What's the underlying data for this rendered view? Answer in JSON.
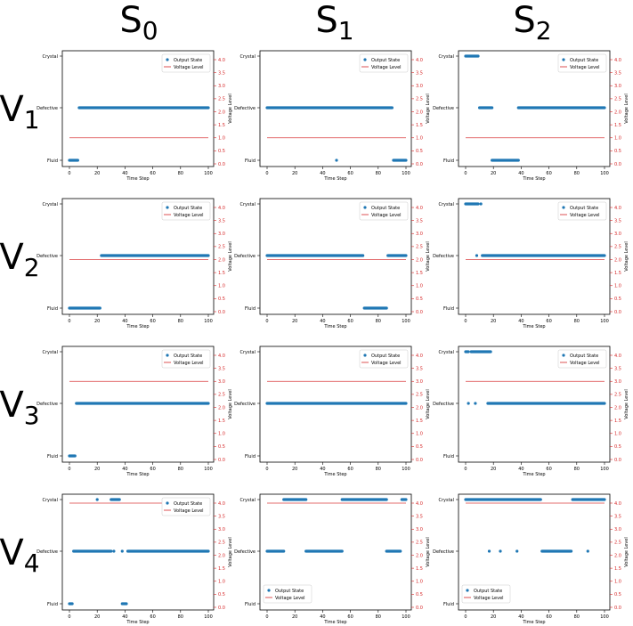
{
  "figure": {
    "column_labels": [
      {
        "base": "S",
        "sub": "0"
      },
      {
        "base": "S",
        "sub": "1"
      },
      {
        "base": "S",
        "sub": "2"
      }
    ],
    "row_labels": [
      {
        "base": "V",
        "sub": "1"
      },
      {
        "base": "V",
        "sub": "2"
      },
      {
        "base": "V",
        "sub": "3"
      },
      {
        "base": "V",
        "sub": "4"
      }
    ]
  },
  "colors": {
    "output_state": "#1f77b4",
    "voltage_level": "#d62728",
    "right_axis": "#d62728"
  },
  "chart_data": [
    {
      "type": "scatter",
      "row": 0,
      "col": 0,
      "xlabel": "Time Step",
      "ylabel_right": "Voltage Level",
      "x_ticks": [
        "0",
        "20",
        "40",
        "60",
        "80",
        "100"
      ],
      "y_left_ticks": [
        "Fluid",
        "Defective",
        "Crystal"
      ],
      "y_right_ticks": [
        "0.0",
        "0.5",
        "1.0",
        "1.5",
        "2.0",
        "2.5",
        "3.0",
        "3.5",
        "4.0"
      ],
      "xlim": [
        0,
        100
      ],
      "ylim_right": [
        0,
        4
      ],
      "legend": [
        "Output State",
        "Voltage Level"
      ],
      "legend_position": "top-right",
      "voltage": 1,
      "state_segments": [
        {
          "state": "Fluid",
          "start": 0,
          "end": 6
        },
        {
          "state": "Defective",
          "start": 7,
          "end": 100
        }
      ],
      "state_points": []
    },
    {
      "type": "scatter",
      "row": 0,
      "col": 1,
      "xlabel": "Time Step",
      "ylabel_right": "Voltage Level",
      "x_ticks": [
        "0",
        "20",
        "40",
        "60",
        "80",
        "100"
      ],
      "y_left_ticks": [
        "Fluid",
        "Defective",
        "Crystal"
      ],
      "y_right_ticks": [
        "0.0",
        "0.5",
        "1.0",
        "1.5",
        "2.0",
        "2.5",
        "3.0",
        "3.5",
        "4.0"
      ],
      "xlim": [
        0,
        100
      ],
      "ylim_right": [
        0,
        4
      ],
      "legend": [
        "Output State",
        "Voltage Level"
      ],
      "legend_position": "top-right",
      "voltage": 1,
      "state_segments": [
        {
          "state": "Defective",
          "start": 0,
          "end": 90
        },
        {
          "state": "Fluid",
          "start": 91,
          "end": 100
        }
      ],
      "state_points": [
        {
          "state": "Fluid",
          "t": 50
        }
      ]
    },
    {
      "type": "scatter",
      "row": 0,
      "col": 2,
      "xlabel": "Time Step",
      "ylabel_right": "Voltage Level",
      "x_ticks": [
        "0",
        "20",
        "40",
        "60",
        "80",
        "100"
      ],
      "y_left_ticks": [
        "Fluid",
        "Defective",
        "Crystal"
      ],
      "y_right_ticks": [
        "0.0",
        "0.5",
        "1.0",
        "1.5",
        "2.0",
        "2.5",
        "3.0",
        "3.5",
        "4.0"
      ],
      "xlim": [
        0,
        100
      ],
      "ylim_right": [
        0,
        4
      ],
      "legend": [
        "Output State",
        "Voltage Level"
      ],
      "legend_position": "top-right",
      "voltage": 1,
      "state_segments": [
        {
          "state": "Crystal",
          "start": 0,
          "end": 9
        },
        {
          "state": "Defective",
          "start": 10,
          "end": 19
        },
        {
          "state": "Fluid",
          "start": 19,
          "end": 38
        },
        {
          "state": "Defective",
          "start": 38,
          "end": 100
        }
      ],
      "state_points": []
    },
    {
      "type": "scatter",
      "row": 1,
      "col": 0,
      "xlabel": "Time Step",
      "ylabel_right": "Voltage Level",
      "x_ticks": [
        "0",
        "20",
        "40",
        "60",
        "80",
        "100"
      ],
      "y_left_ticks": [
        "Fluid",
        "Defective",
        "Crystal"
      ],
      "y_right_ticks": [
        "0.0",
        "0.5",
        "1.0",
        "1.5",
        "2.0",
        "2.5",
        "3.0",
        "3.5",
        "4.0"
      ],
      "xlim": [
        0,
        100
      ],
      "ylim_right": [
        0,
        4
      ],
      "legend": [
        "Output State",
        "Voltage Level"
      ],
      "legend_position": "top-right",
      "voltage": 2,
      "state_segments": [
        {
          "state": "Fluid",
          "start": 0,
          "end": 22
        },
        {
          "state": "Defective",
          "start": 23,
          "end": 100
        }
      ],
      "state_points": []
    },
    {
      "type": "scatter",
      "row": 1,
      "col": 1,
      "xlabel": "Time Step",
      "ylabel_right": "Voltage Level",
      "x_ticks": [
        "0",
        "20",
        "40",
        "60",
        "80",
        "100"
      ],
      "y_left_ticks": [
        "Fluid",
        "Defective",
        "Crystal"
      ],
      "y_right_ticks": [
        "0.0",
        "0.5",
        "1.0",
        "1.5",
        "2.0",
        "2.5",
        "3.0",
        "3.5",
        "4.0"
      ],
      "xlim": [
        0,
        100
      ],
      "ylim_right": [
        0,
        4
      ],
      "legend": [
        "Output State",
        "Voltage Level"
      ],
      "legend_position": "top-right",
      "voltage": 2,
      "state_segments": [
        {
          "state": "Defective",
          "start": 0,
          "end": 69
        },
        {
          "state": "Fluid",
          "start": 70,
          "end": 86
        },
        {
          "state": "Defective",
          "start": 87,
          "end": 100
        }
      ],
      "state_points": []
    },
    {
      "type": "scatter",
      "row": 1,
      "col": 2,
      "xlabel": "Time Step",
      "ylabel_right": "Voltage Level",
      "x_ticks": [
        "0",
        "20",
        "40",
        "60",
        "80",
        "100"
      ],
      "y_left_ticks": [
        "Fluid",
        "Defective",
        "Crystal"
      ],
      "y_right_ticks": [
        "0.0",
        "0.5",
        "1.0",
        "1.5",
        "2.0",
        "2.5",
        "3.0",
        "3.5",
        "4.0"
      ],
      "xlim": [
        0,
        100
      ],
      "ylim_right": [
        0,
        4
      ],
      "legend": [
        "Output State",
        "Voltage Level"
      ],
      "legend_position": "top-right",
      "voltage": 2,
      "state_segments": [
        {
          "state": "Crystal",
          "start": 0,
          "end": 9
        },
        {
          "state": "Defective",
          "start": 12,
          "end": 100
        }
      ],
      "state_points": [
        {
          "state": "Crystal",
          "t": 11
        },
        {
          "state": "Defective",
          "t": 8
        }
      ]
    },
    {
      "type": "scatter",
      "row": 2,
      "col": 0,
      "xlabel": "Time Step",
      "ylabel_right": "Voltage Level",
      "x_ticks": [
        "0",
        "20",
        "40",
        "60",
        "80",
        "100"
      ],
      "y_left_ticks": [
        "Fluid",
        "Defective",
        "Crystal"
      ],
      "y_right_ticks": [
        "0.0",
        "0.5",
        "1.0",
        "1.5",
        "2.0",
        "2.5",
        "3.0",
        "3.5",
        "4.0"
      ],
      "xlim": [
        0,
        100
      ],
      "ylim_right": [
        0,
        4
      ],
      "legend": [
        "Output State",
        "Voltage Level"
      ],
      "legend_position": "top-right",
      "voltage": 3,
      "state_segments": [
        {
          "state": "Fluid",
          "start": 0,
          "end": 4
        },
        {
          "state": "Defective",
          "start": 5,
          "end": 100
        }
      ],
      "state_points": []
    },
    {
      "type": "scatter",
      "row": 2,
      "col": 1,
      "xlabel": "Time Step",
      "ylabel_right": "Voltage Level",
      "x_ticks": [
        "0",
        "20",
        "40",
        "60",
        "80",
        "100"
      ],
      "y_left_ticks": [
        "Fluid",
        "Defective",
        "Crystal"
      ],
      "y_right_ticks": [
        "0.0",
        "0.5",
        "1.0",
        "1.5",
        "2.0",
        "2.5",
        "3.0",
        "3.5",
        "4.0"
      ],
      "xlim": [
        0,
        100
      ],
      "ylim_right": [
        0,
        4
      ],
      "legend": [
        "Output State",
        "Voltage Level"
      ],
      "legend_position": "top-right",
      "voltage": 3,
      "state_segments": [
        {
          "state": "Defective",
          "start": 0,
          "end": 100
        }
      ],
      "state_points": []
    },
    {
      "type": "scatter",
      "row": 2,
      "col": 2,
      "xlabel": "Time Step",
      "ylabel_right": "Voltage Level",
      "x_ticks": [
        "0",
        "20",
        "40",
        "60",
        "80",
        "100"
      ],
      "y_left_ticks": [
        "Fluid",
        "Defective",
        "Crystal"
      ],
      "y_right_ticks": [
        "0.0",
        "0.5",
        "1.0",
        "1.5",
        "2.0",
        "2.5",
        "3.0",
        "3.5",
        "4.0"
      ],
      "xlim": [
        0,
        100
      ],
      "ylim_right": [
        0,
        4
      ],
      "legend": [
        "Output State",
        "Voltage Level"
      ],
      "legend_position": "top-right",
      "voltage": 3,
      "state_segments": [
        {
          "state": "Crystal",
          "start": 0,
          "end": 2
        },
        {
          "state": "Crystal",
          "start": 4,
          "end": 18
        },
        {
          "state": "Defective",
          "start": 16,
          "end": 100
        }
      ],
      "state_points": [
        {
          "state": "Defective",
          "t": 2
        },
        {
          "state": "Defective",
          "t": 7
        }
      ]
    },
    {
      "type": "scatter",
      "row": 3,
      "col": 0,
      "xlabel": "Time Step",
      "ylabel_right": "Voltage Level",
      "x_ticks": [
        "0",
        "20",
        "40",
        "60",
        "80",
        "100"
      ],
      "y_left_ticks": [
        "Fluid",
        "Defective",
        "Crystal"
      ],
      "y_right_ticks": [
        "0.0",
        "0.5",
        "1.0",
        "1.5",
        "2.0",
        "2.5",
        "3.0",
        "3.5",
        "4.0"
      ],
      "xlim": [
        0,
        100
      ],
      "ylim_right": [
        0,
        4
      ],
      "legend": [
        "Output State",
        "Voltage Level"
      ],
      "legend_position": "top-right",
      "voltage": 4,
      "state_segments": [
        {
          "state": "Fluid",
          "start": 0,
          "end": 2
        },
        {
          "state": "Defective",
          "start": 3,
          "end": 30
        },
        {
          "state": "Crystal",
          "start": 30,
          "end": 36
        },
        {
          "state": "Defective",
          "start": 42,
          "end": 100
        },
        {
          "state": "Fluid",
          "start": 38,
          "end": 41
        }
      ],
      "state_points": [
        {
          "state": "Crystal",
          "t": 20
        },
        {
          "state": "Defective",
          "t": 32
        },
        {
          "state": "Defective",
          "t": 38
        }
      ]
    },
    {
      "type": "scatter",
      "row": 3,
      "col": 1,
      "xlabel": "Time Step",
      "ylabel_right": "Voltage Level",
      "x_ticks": [
        "0",
        "20",
        "40",
        "60",
        "80",
        "100"
      ],
      "y_left_ticks": [
        "Fluid",
        "Defective",
        "Crystal"
      ],
      "y_right_ticks": [
        "0.0",
        "0.5",
        "1.0",
        "1.5",
        "2.0",
        "2.5",
        "3.0",
        "3.5",
        "4.0"
      ],
      "xlim": [
        0,
        100
      ],
      "ylim_right": [
        0,
        4
      ],
      "legend": [
        "Output State",
        "Voltage Level"
      ],
      "legend_position": "bottom-left",
      "voltage": 4,
      "state_segments": [
        {
          "state": "Defective",
          "start": 0,
          "end": 12
        },
        {
          "state": "Crystal",
          "start": 12,
          "end": 28
        },
        {
          "state": "Defective",
          "start": 28,
          "end": 54
        },
        {
          "state": "Crystal",
          "start": 54,
          "end": 86
        },
        {
          "state": "Defective",
          "start": 86,
          "end": 96
        },
        {
          "state": "Crystal",
          "start": 97,
          "end": 100
        }
      ],
      "state_points": []
    },
    {
      "type": "scatter",
      "row": 3,
      "col": 2,
      "xlabel": "Time Step",
      "ylabel_right": "Voltage Level",
      "x_ticks": [
        "0",
        "20",
        "40",
        "60",
        "80",
        "100"
      ],
      "y_left_ticks": [
        "Fluid",
        "Defective",
        "Crystal"
      ],
      "y_right_ticks": [
        "0.0",
        "0.5",
        "1.0",
        "1.5",
        "2.0",
        "2.5",
        "3.0",
        "3.5",
        "4.0"
      ],
      "xlim": [
        0,
        100
      ],
      "ylim_right": [
        0,
        4
      ],
      "legend": [
        "Output State",
        "Voltage Level"
      ],
      "legend_position": "bottom-left",
      "voltage": 4,
      "state_segments": [
        {
          "state": "Crystal",
          "start": 0,
          "end": 54
        },
        {
          "state": "Defective",
          "start": 55,
          "end": 76
        },
        {
          "state": "Crystal",
          "start": 77,
          "end": 100
        }
      ],
      "state_points": [
        {
          "state": "Defective",
          "t": 17
        },
        {
          "state": "Defective",
          "t": 25
        },
        {
          "state": "Defective",
          "t": 37
        },
        {
          "state": "Defective",
          "t": 88
        }
      ]
    }
  ]
}
